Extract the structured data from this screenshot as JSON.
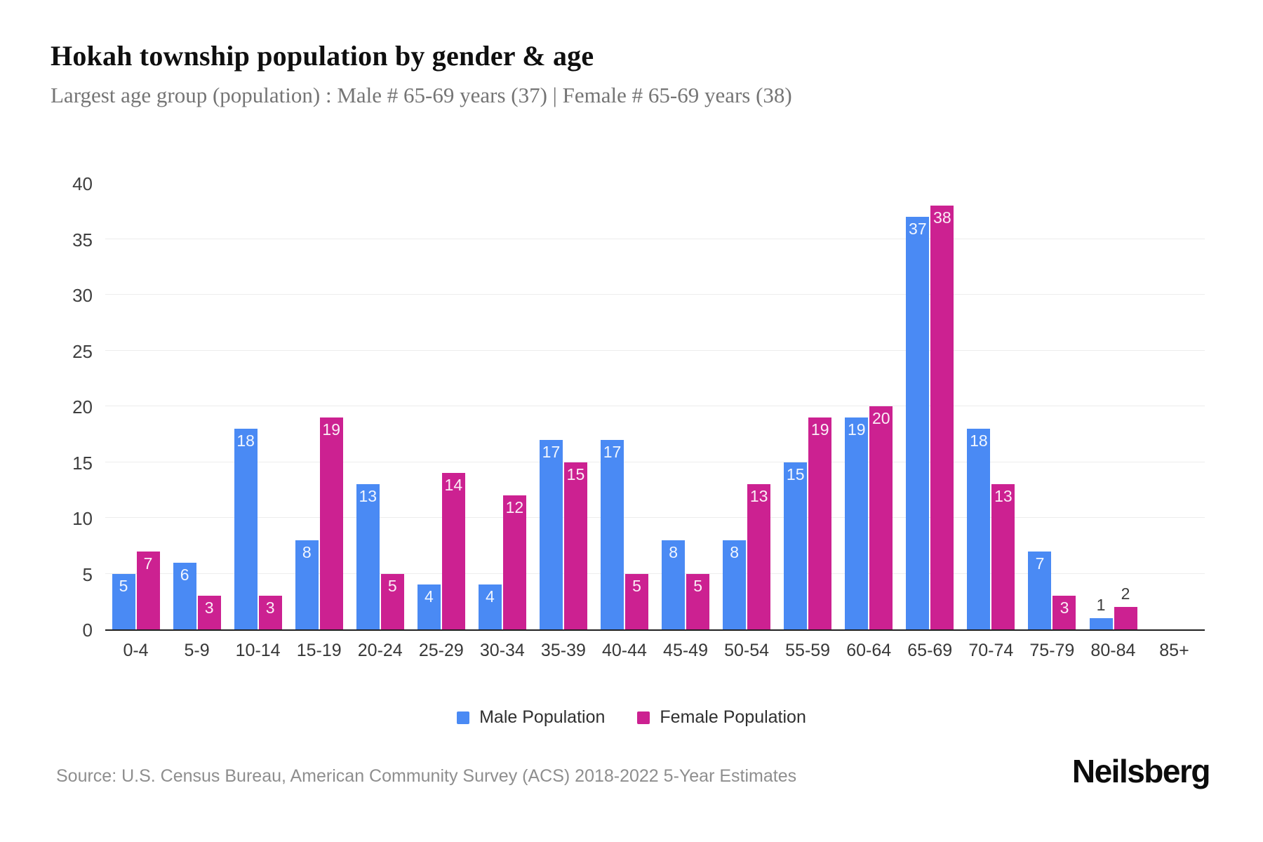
{
  "header": {
    "title": "Hokah township population by gender & age",
    "subtitle": "Largest age group (population) : Male # 65-69 years (37) | Female # 65-69 years (38)"
  },
  "chart_data": {
    "type": "bar",
    "title": "Hokah township population by gender & age",
    "categories": [
      "0-4",
      "5-9",
      "10-14",
      "15-19",
      "20-24",
      "25-29",
      "30-34",
      "35-39",
      "40-44",
      "45-49",
      "50-54",
      "55-59",
      "60-64",
      "65-69",
      "70-74",
      "75-79",
      "80-84",
      "85+"
    ],
    "series": [
      {
        "name": "Male Population",
        "color": "#4a8af4",
        "values": [
          5,
          6,
          18,
          8,
          13,
          4,
          4,
          17,
          17,
          8,
          8,
          15,
          19,
          37,
          18,
          7,
          1,
          0
        ]
      },
      {
        "name": "Female Population",
        "color": "#cc2191",
        "values": [
          7,
          3,
          3,
          19,
          5,
          14,
          12,
          15,
          5,
          5,
          13,
          19,
          20,
          38,
          13,
          3,
          2,
          0
        ]
      }
    ],
    "xlabel": "",
    "ylabel": "",
    "ylim": [
      0,
      40
    ],
    "ytick_step": 5,
    "grid": "horizontal",
    "legend_position": "bottom",
    "bar_value_labels": true
  },
  "legend": {
    "items": [
      {
        "label": "Male Population",
        "color": "#4a8af4"
      },
      {
        "label": "Female Population",
        "color": "#cc2191"
      }
    ]
  },
  "footer": {
    "source": "Source: U.S. Census Bureau, American Community Survey (ACS) 2018-2022 5-Year Estimates",
    "brand": "Neilsberg"
  }
}
